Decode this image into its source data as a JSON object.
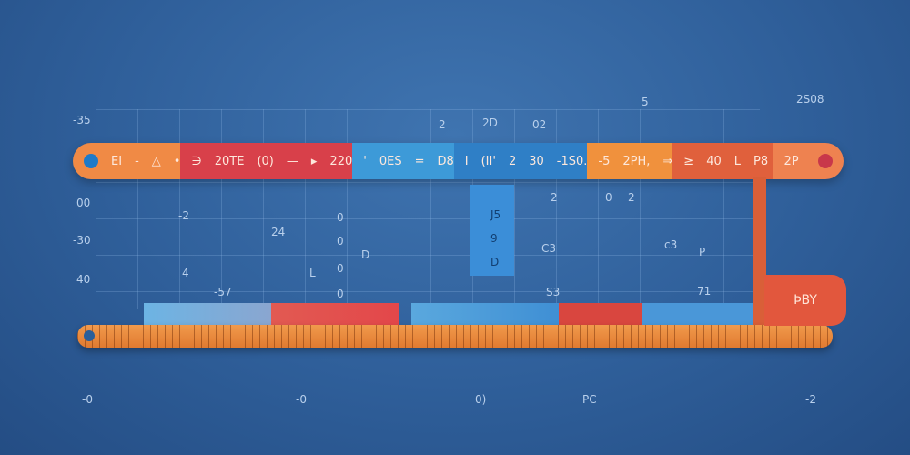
{
  "top_bar": {
    "segments": [
      {
        "color": "#f08a45",
        "items": [
          "EI",
          "-",
          "△",
          "•"
        ]
      },
      {
        "color": "#d8404a",
        "items": [
          "∋",
          "20TE",
          "(0)",
          "—",
          "▸",
          "220"
        ]
      },
      {
        "color": "#3d9ad8",
        "items": [
          "'",
          "0ES",
          "=",
          "D8"
        ]
      },
      {
        "color": "#2f7fc6",
        "items": [
          "I",
          "(II'",
          "2",
          "30",
          "-1S0."
        ]
      },
      {
        "color": "#f0913d",
        "items": [
          "-5",
          "2PH,",
          "⇒"
        ]
      },
      {
        "color": "#e0603c",
        "items": [
          "≥",
          "40",
          "L",
          "P8"
        ]
      },
      {
        "color": "#ee8250",
        "items": [
          "2P"
        ]
      }
    ],
    "left_dot_color": "#1f7ac8",
    "right_dot_color": "#c8384a"
  },
  "axis_labels_left": [
    "-35",
    "00",
    "-30",
    "40"
  ],
  "top_labels": [
    "2",
    "2D",
    "02",
    "5",
    "2S08"
  ],
  "grid_labels": [
    "-2",
    "24",
    "0",
    "0",
    "D",
    "0",
    "0",
    "L",
    "4",
    "-57",
    "S3",
    "2",
    "C3",
    "c3",
    "P",
    "0",
    "2",
    "71"
  ],
  "blue_panel": [
    "J5",
    "9",
    "D"
  ],
  "tag_text": "ÞBY",
  "bottom_labels": [
    "-0",
    "-0",
    "0)",
    "PC",
    "-2"
  ]
}
